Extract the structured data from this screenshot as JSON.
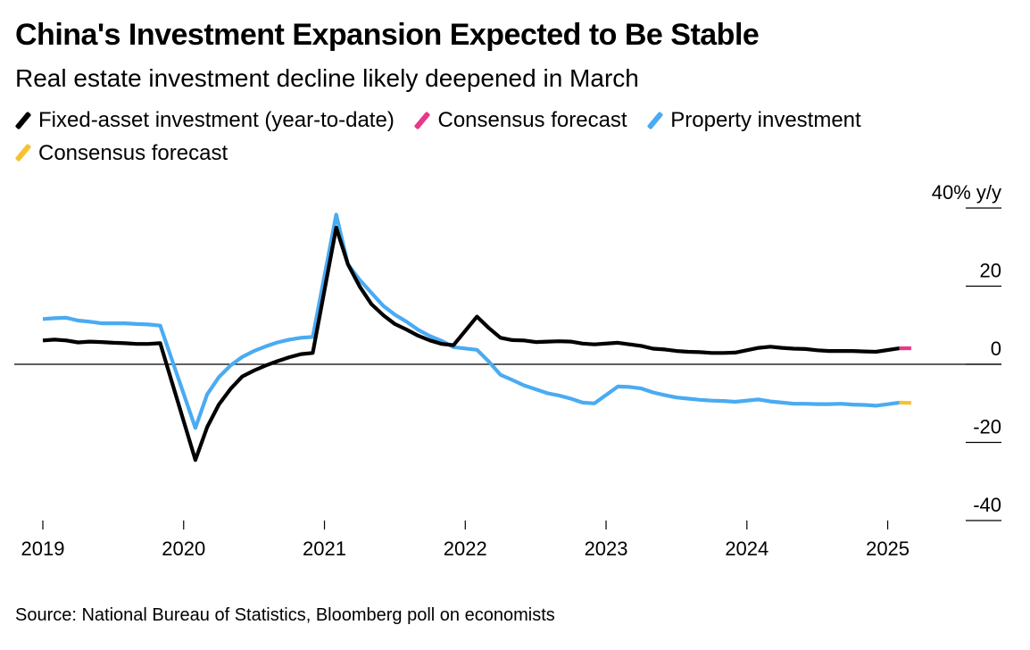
{
  "title": "China's Investment Expansion Expected to Be Stable",
  "subtitle": "Real estate investment decline likely deepened in March",
  "legend": [
    {
      "label": "Fixed-asset investment (year-to-date)",
      "color": "#000000"
    },
    {
      "label": "Consensus forecast",
      "color": "#e8388a"
    },
    {
      "label": "Property investment",
      "color": "#4aabf2"
    },
    {
      "label": "Consensus forecast",
      "color": "#f5c232"
    }
  ],
  "source": "Source: National Bureau of Statistics, Bloomberg poll on economists",
  "chart_data": {
    "type": "line",
    "y_unit_label": "40% y/y",
    "ylim": [
      -40,
      40
    ],
    "yticks": [
      40,
      20,
      0,
      -20,
      -40
    ],
    "ytick_labels": [
      "40% y/y",
      "20",
      "0",
      "-20",
      "-40"
    ],
    "xlim": [
      "2019-01",
      "2025-04"
    ],
    "xticks": [
      "2019",
      "2020",
      "2021",
      "2022",
      "2023",
      "2024",
      "2025"
    ],
    "zero_line": true,
    "series": [
      {
        "name": "Fixed-asset investment (year-to-date)",
        "color": "#000000",
        "points": [
          [
            "2019-01",
            6.1
          ],
          [
            "2019-02",
            6.3
          ],
          [
            "2019-03",
            6.1
          ],
          [
            "2019-04",
            5.6
          ],
          [
            "2019-05",
            5.8
          ],
          [
            "2019-06",
            5.7
          ],
          [
            "2019-07",
            5.5
          ],
          [
            "2019-08",
            5.4
          ],
          [
            "2019-09",
            5.2
          ],
          [
            "2019-10",
            5.2
          ],
          [
            "2019-11",
            5.4
          ],
          [
            "2020-02",
            -24.5
          ],
          [
            "2020-03",
            -16.1
          ],
          [
            "2020-04",
            -10.3
          ],
          [
            "2020-05",
            -6.3
          ],
          [
            "2020-06",
            -3.1
          ],
          [
            "2020-07",
            -1.6
          ],
          [
            "2020-08",
            -0.3
          ],
          [
            "2020-09",
            0.8
          ],
          [
            "2020-10",
            1.8
          ],
          [
            "2020-11",
            2.6
          ],
          [
            "2020-12",
            2.9
          ],
          [
            "2021-02",
            35.0
          ],
          [
            "2021-03",
            25.6
          ],
          [
            "2021-04",
            19.9
          ],
          [
            "2021-05",
            15.4
          ],
          [
            "2021-06",
            12.6
          ],
          [
            "2021-07",
            10.3
          ],
          [
            "2021-08",
            8.9
          ],
          [
            "2021-09",
            7.3
          ],
          [
            "2021-10",
            6.1
          ],
          [
            "2021-11",
            5.2
          ],
          [
            "2021-12",
            4.9
          ],
          [
            "2022-02",
            12.2
          ],
          [
            "2022-03",
            9.3
          ],
          [
            "2022-04",
            6.8
          ],
          [
            "2022-05",
            6.2
          ],
          [
            "2022-06",
            6.1
          ],
          [
            "2022-07",
            5.7
          ],
          [
            "2022-08",
            5.8
          ],
          [
            "2022-09",
            5.9
          ],
          [
            "2022-10",
            5.8
          ],
          [
            "2022-11",
            5.3
          ],
          [
            "2022-12",
            5.1
          ],
          [
            "2023-02",
            5.5
          ],
          [
            "2023-03",
            5.1
          ],
          [
            "2023-04",
            4.7
          ],
          [
            "2023-05",
            4.0
          ],
          [
            "2023-06",
            3.8
          ],
          [
            "2023-07",
            3.4
          ],
          [
            "2023-08",
            3.2
          ],
          [
            "2023-09",
            3.1
          ],
          [
            "2023-10",
            2.9
          ],
          [
            "2023-11",
            2.9
          ],
          [
            "2023-12",
            3.0
          ],
          [
            "2024-02",
            4.2
          ],
          [
            "2024-03",
            4.5
          ],
          [
            "2024-04",
            4.2
          ],
          [
            "2024-05",
            4.0
          ],
          [
            "2024-06",
            3.9
          ],
          [
            "2024-07",
            3.6
          ],
          [
            "2024-08",
            3.4
          ],
          [
            "2024-09",
            3.4
          ],
          [
            "2024-10",
            3.4
          ],
          [
            "2024-11",
            3.3
          ],
          [
            "2024-12",
            3.2
          ],
          [
            "2025-02",
            4.1
          ]
        ]
      },
      {
        "name": "Consensus forecast",
        "color": "#e8388a",
        "points": [
          [
            "2025-02",
            4.1
          ],
          [
            "2025-03",
            4.1
          ]
        ]
      },
      {
        "name": "Property investment",
        "color": "#4aabf2",
        "points": [
          [
            "2019-01",
            11.6
          ],
          [
            "2019-02",
            11.8
          ],
          [
            "2019-03",
            11.9
          ],
          [
            "2019-04",
            11.2
          ],
          [
            "2019-05",
            10.9
          ],
          [
            "2019-06",
            10.5
          ],
          [
            "2019-07",
            10.5
          ],
          [
            "2019-08",
            10.5
          ],
          [
            "2019-09",
            10.3
          ],
          [
            "2019-10",
            10.2
          ],
          [
            "2019-11",
            9.9
          ],
          [
            "2020-02",
            -16.3
          ],
          [
            "2020-03",
            -7.7
          ],
          [
            "2020-04",
            -3.3
          ],
          [
            "2020-05",
            -0.3
          ],
          [
            "2020-06",
            1.9
          ],
          [
            "2020-07",
            3.4
          ],
          [
            "2020-08",
            4.6
          ],
          [
            "2020-09",
            5.6
          ],
          [
            "2020-10",
            6.3
          ],
          [
            "2020-11",
            6.8
          ],
          [
            "2020-12",
            7.0
          ],
          [
            "2021-02",
            38.3
          ],
          [
            "2021-03",
            25.6
          ],
          [
            "2021-04",
            21.6
          ],
          [
            "2021-05",
            18.3
          ],
          [
            "2021-06",
            15.0
          ],
          [
            "2021-07",
            12.7
          ],
          [
            "2021-08",
            10.9
          ],
          [
            "2021-09",
            8.8
          ],
          [
            "2021-10",
            7.2
          ],
          [
            "2021-11",
            6.0
          ],
          [
            "2021-12",
            4.4
          ],
          [
            "2022-02",
            3.7
          ],
          [
            "2022-03",
            0.7
          ],
          [
            "2022-04",
            -2.7
          ],
          [
            "2022-05",
            -4.0
          ],
          [
            "2022-06",
            -5.4
          ],
          [
            "2022-07",
            -6.4
          ],
          [
            "2022-08",
            -7.4
          ],
          [
            "2022-09",
            -8.0
          ],
          [
            "2022-10",
            -8.8
          ],
          [
            "2022-11",
            -9.8
          ],
          [
            "2022-12",
            -10.0
          ],
          [
            "2023-02",
            -5.7
          ],
          [
            "2023-03",
            -5.8
          ],
          [
            "2023-04",
            -6.2
          ],
          [
            "2023-05",
            -7.2
          ],
          [
            "2023-06",
            -7.9
          ],
          [
            "2023-07",
            -8.5
          ],
          [
            "2023-08",
            -8.8
          ],
          [
            "2023-09",
            -9.1
          ],
          [
            "2023-10",
            -9.3
          ],
          [
            "2023-11",
            -9.4
          ],
          [
            "2023-12",
            -9.6
          ],
          [
            "2024-02",
            -9.0
          ],
          [
            "2024-03",
            -9.5
          ],
          [
            "2024-04",
            -9.8
          ],
          [
            "2024-05",
            -10.1
          ],
          [
            "2024-06",
            -10.1
          ],
          [
            "2024-07",
            -10.2
          ],
          [
            "2024-08",
            -10.2
          ],
          [
            "2024-09",
            -10.1
          ],
          [
            "2024-10",
            -10.3
          ],
          [
            "2024-11",
            -10.4
          ],
          [
            "2024-12",
            -10.6
          ],
          [
            "2025-02",
            -9.8
          ]
        ]
      },
      {
        "name": "Consensus forecast",
        "color": "#f5c232",
        "points": [
          [
            "2025-02",
            -9.8
          ],
          [
            "2025-03",
            -9.9
          ]
        ]
      }
    ]
  }
}
